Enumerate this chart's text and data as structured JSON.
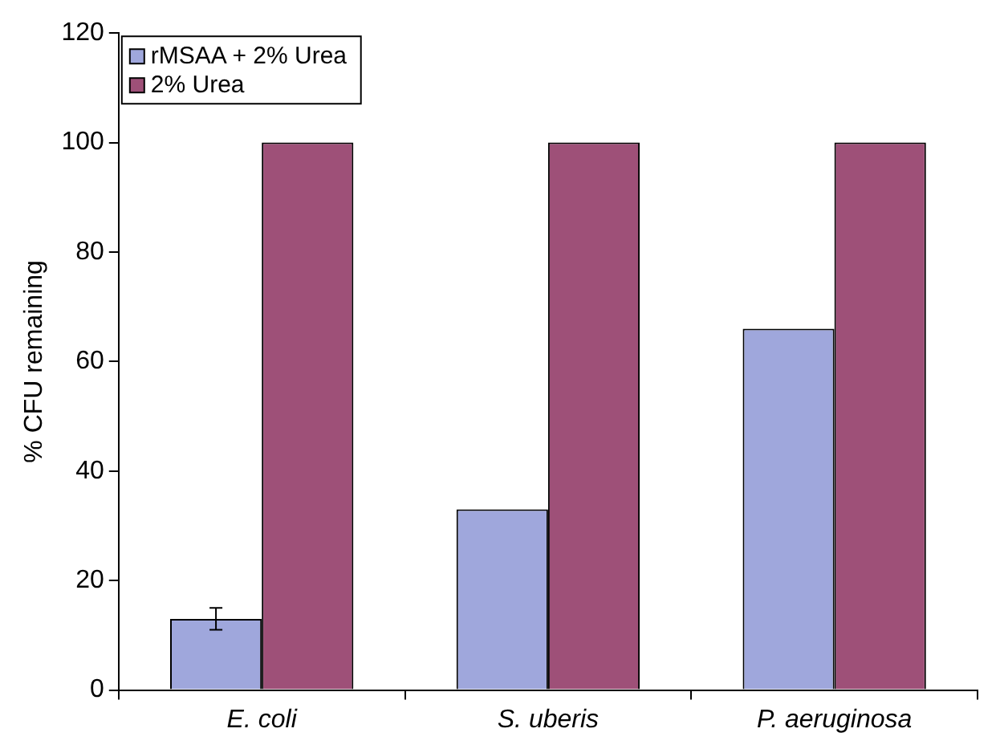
{
  "chart_data": {
    "type": "bar",
    "ylabel": "% CFU remaining",
    "categories": [
      "E. coli",
      "S. uberis",
      "P. aeruginosa"
    ],
    "series": [
      {
        "name": "rMSAA + 2% Urea",
        "color": "#9fa7dc",
        "values": [
          13,
          33,
          66
        ],
        "errors": [
          2,
          null,
          null
        ]
      },
      {
        "name": "2% Urea",
        "color": "#9e5078",
        "values": [
          100,
          100,
          100
        ]
      }
    ],
    "ylim": [
      0,
      120
    ],
    "yticks": [
      0,
      20,
      40,
      60,
      80,
      100,
      120
    ],
    "legend": "top left",
    "grid": false
  }
}
